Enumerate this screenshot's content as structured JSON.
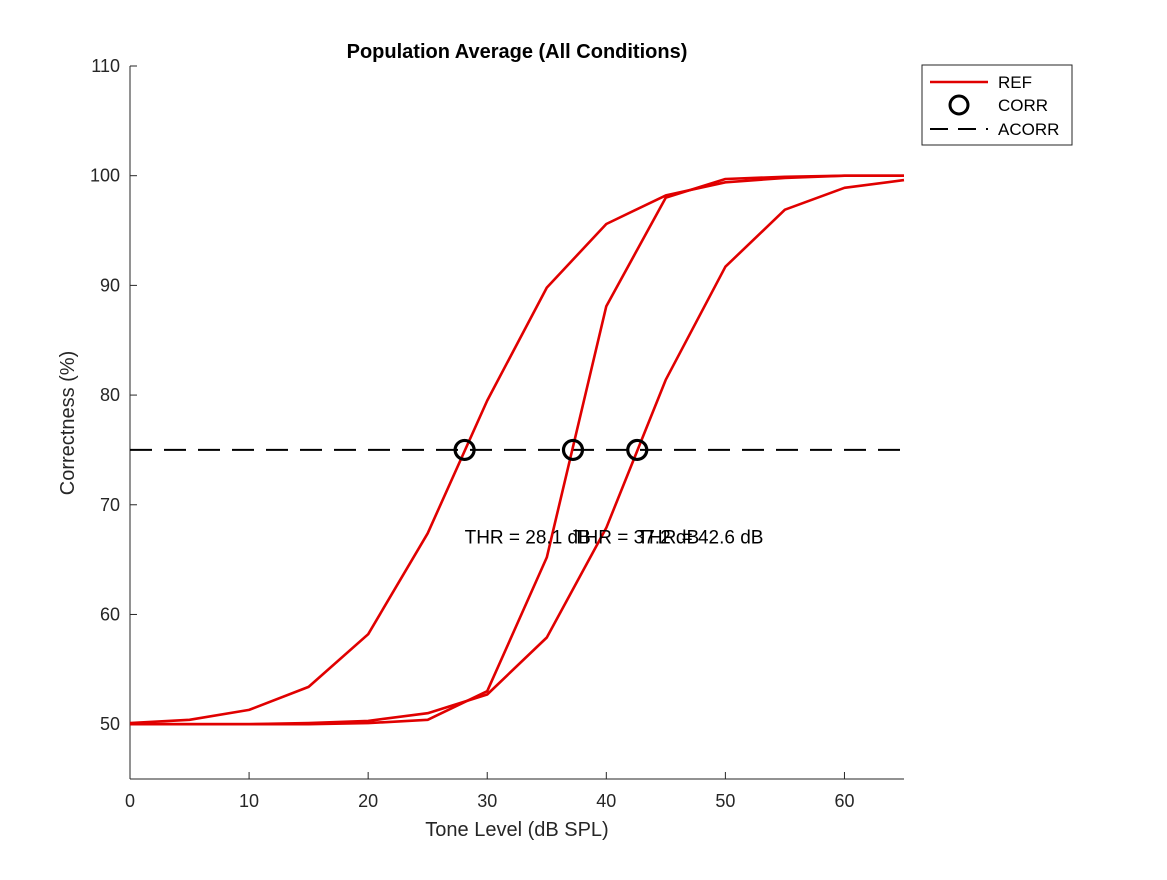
{
  "chart_data": {
    "type": "line",
    "title": "Population Average (All Conditions)",
    "xlabel": "Tone Level (dB SPL)",
    "ylabel": "Correctness (%)",
    "xlim": [
      0,
      65
    ],
    "ylim": [
      45,
      110
    ],
    "xticks": [
      "0",
      "10",
      "20",
      "30",
      "40",
      "50",
      "60"
    ],
    "yticks": [
      "50",
      "60",
      "70",
      "80",
      "90",
      "100",
      "110"
    ],
    "grid": false,
    "legend": {
      "placement": "top-right",
      "entries": [
        {
          "label": "REF",
          "style": "solid",
          "color": "#e00000"
        },
        {
          "label": "CORR",
          "style": "circle-marker",
          "color": "#000000"
        },
        {
          "label": "ACORR",
          "style": "dashed",
          "color": "#000000"
        }
      ]
    },
    "series": [
      {
        "color": "#e00000",
        "points": [
          [
            0,
            50.1
          ],
          [
            5,
            50.4
          ],
          [
            10,
            51.3
          ],
          [
            15,
            53.4
          ],
          [
            20,
            58.2
          ],
          [
            25,
            67.4
          ],
          [
            30,
            79.5
          ],
          [
            35,
            89.8
          ],
          [
            40,
            95.6
          ],
          [
            45,
            98.2
          ],
          [
            50,
            99.4
          ],
          [
            55,
            99.8
          ],
          [
            60,
            100
          ],
          [
            65,
            100
          ]
        ]
      },
      {
        "color": "#e00000",
        "points": [
          [
            0,
            50
          ],
          [
            5,
            50
          ],
          [
            10,
            50
          ],
          [
            15,
            50
          ],
          [
            20,
            50.1
          ],
          [
            25,
            50.4
          ],
          [
            30,
            53.0
          ],
          [
            35,
            65.2
          ],
          [
            40,
            88.1
          ],
          [
            45,
            98.0
          ],
          [
            50,
            99.7
          ],
          [
            55,
            99.9
          ],
          [
            60,
            100
          ],
          [
            65,
            100
          ]
        ]
      },
      {
        "color": "#e00000",
        "points": [
          [
            0,
            50
          ],
          [
            5,
            50
          ],
          [
            10,
            50
          ],
          [
            15,
            50.1
          ],
          [
            20,
            50.3
          ],
          [
            25,
            51.0
          ],
          [
            30,
            52.7
          ],
          [
            35,
            57.9
          ],
          [
            40,
            67.9
          ],
          [
            45,
            81.4
          ],
          [
            50,
            91.7
          ],
          [
            55,
            96.9
          ],
          [
            60,
            98.9
          ],
          [
            65,
            99.6
          ]
        ]
      }
    ],
    "reference_line": {
      "y": 75,
      "color": "#000000",
      "style": "dashed"
    },
    "threshold_markers": [
      {
        "x": 28.1,
        "y": 75
      },
      {
        "x": 37.2,
        "y": 75
      },
      {
        "x": 42.6,
        "y": 75
      }
    ],
    "annotations": [
      {
        "text": "THR = 28.1 dB",
        "x": 28.1,
        "y": 67
      },
      {
        "text": "THR = 37.2 dB",
        "x": 37.2,
        "y": 67
      },
      {
        "text": "THR = 42.6 dB",
        "x": 42.6,
        "y": 67
      }
    ]
  }
}
